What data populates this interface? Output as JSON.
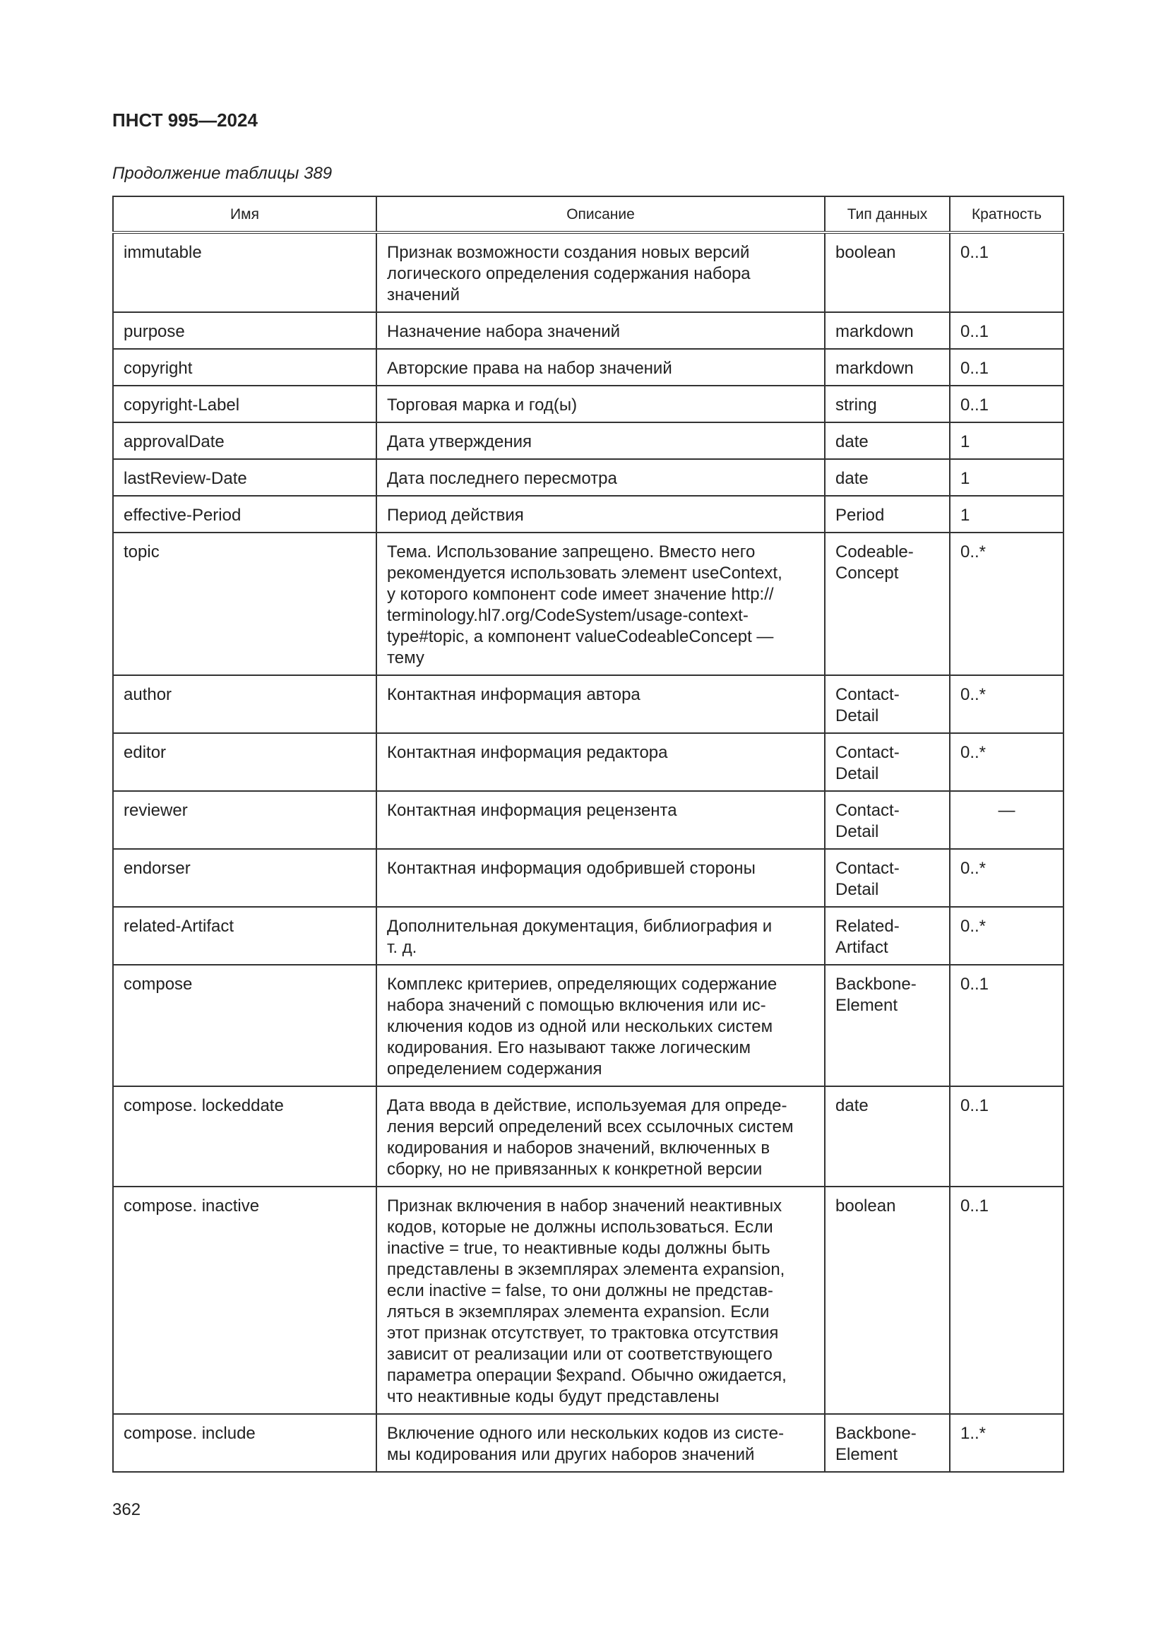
{
  "header": {
    "title": "ПНСТ 995—2024"
  },
  "caption": "Продолжение таблицы 389",
  "table": {
    "columns": [
      "Имя",
      "Описание",
      "Тип данных",
      "Кратность"
    ],
    "rows": [
      [
        [
          "immutable"
        ],
        [
          "Признак возможности создания новых версий",
          "логического определения содержания набора",
          "значений"
        ],
        [
          "boolean"
        ],
        [
          "0..1"
        ]
      ],
      [
        [
          "purpose"
        ],
        [
          "Назначение набора значений"
        ],
        [
          "markdown"
        ],
        [
          "0..1"
        ]
      ],
      [
        [
          "copyright"
        ],
        [
          "Авторские права на набор значений"
        ],
        [
          "markdown"
        ],
        [
          "0..1"
        ]
      ],
      [
        [
          "copyright-Label"
        ],
        [
          "Торговая марка и год(ы)"
        ],
        [
          "string"
        ],
        [
          "0..1"
        ]
      ],
      [
        [
          "approvalDate"
        ],
        [
          "Дата утверждения"
        ],
        [
          "date"
        ],
        [
          "1"
        ]
      ],
      [
        [
          "lastReview-Date"
        ],
        [
          "Дата последнего пересмотра"
        ],
        [
          "date"
        ],
        [
          "1"
        ]
      ],
      [
        [
          "effective-Period"
        ],
        [
          "Период действия"
        ],
        [
          "Period"
        ],
        [
          "1"
        ]
      ],
      [
        [
          "topic"
        ],
        [
          "Тема. Использование запрещено. Вместо него",
          "рекомендуется использовать элемент useContext,",
          "у которого компонент code имеет значение http://",
          "terminology.hl7.org/CodeSystem/usage-context-",
          "type#topic, а компонент valueCodeableConcept —",
          "тему"
        ],
        [
          "Codeable-",
          "Concept"
        ],
        [
          "0..*"
        ]
      ],
      [
        [
          "author"
        ],
        [
          "Контактная информация автора"
        ],
        [
          "Contact-",
          "Detail"
        ],
        [
          "0..*"
        ]
      ],
      [
        [
          "editor"
        ],
        [
          "Контактная информация редактора"
        ],
        [
          "Contact-",
          "Detail"
        ],
        [
          "0..*"
        ]
      ],
      [
        [
          "reviewer"
        ],
        [
          "Контактная информация рецензента"
        ],
        [
          "Contact-",
          "Detail"
        ],
        [
          "—"
        ]
      ],
      [
        [
          "endorser"
        ],
        [
          "Контактная информация одобрившей стороны"
        ],
        [
          "Contact-",
          "Detail"
        ],
        [
          "0..*"
        ]
      ],
      [
        [
          "related-Artifact"
        ],
        [
          "Дополнительная документация, библиография и",
          "т. д."
        ],
        [
          "Related-",
          "Artifact"
        ],
        [
          "0..*"
        ]
      ],
      [
        [
          "compose"
        ],
        [
          "Комплекс критериев, определяющих содержание",
          "набора значений с помощью включения или ис-",
          "ключения кодов из одной или нескольких систем",
          "кодирования. Его называют также логическим",
          "определением содержания"
        ],
        [
          "Backbone-",
          "Element"
        ],
        [
          "0..1"
        ]
      ],
      [
        [
          "compose. lockeddate"
        ],
        [
          "Дата ввода в действие, используемая для опреде-",
          "ления версий определений всех ссылочных систем",
          "кодирования и наборов значений, включенных в",
          "сборку, но не привязанных к конкретной версии"
        ],
        [
          "date"
        ],
        [
          "0..1"
        ]
      ],
      [
        [
          "compose. inactive"
        ],
        [
          "Признак включения в набор значений неактивных",
          "кодов, которые не должны использоваться. Если",
          "inactive = true, то неактивные коды должны быть",
          "представлены в экземплярах элемента expansion,",
          "если inactive = false, то они должны не представ-",
          "ляться в экземплярах элемента expansion. Если",
          "этот признак отсутствует, то трактовка отсутствия",
          "зависит от реализации или от соответствующего",
          "параметра операции $expand. Обычно ожидается,",
          "что неактивные коды будут представлены"
        ],
        [
          "boolean"
        ],
        [
          "0..1"
        ]
      ],
      [
        [
          "compose. include"
        ],
        [
          "Включение одного или нескольких кодов из систе-",
          "мы кодирования или других наборов значений"
        ],
        [
          "Backbone-",
          "Element"
        ],
        [
          "1..*"
        ]
      ]
    ]
  },
  "page_number": "362"
}
